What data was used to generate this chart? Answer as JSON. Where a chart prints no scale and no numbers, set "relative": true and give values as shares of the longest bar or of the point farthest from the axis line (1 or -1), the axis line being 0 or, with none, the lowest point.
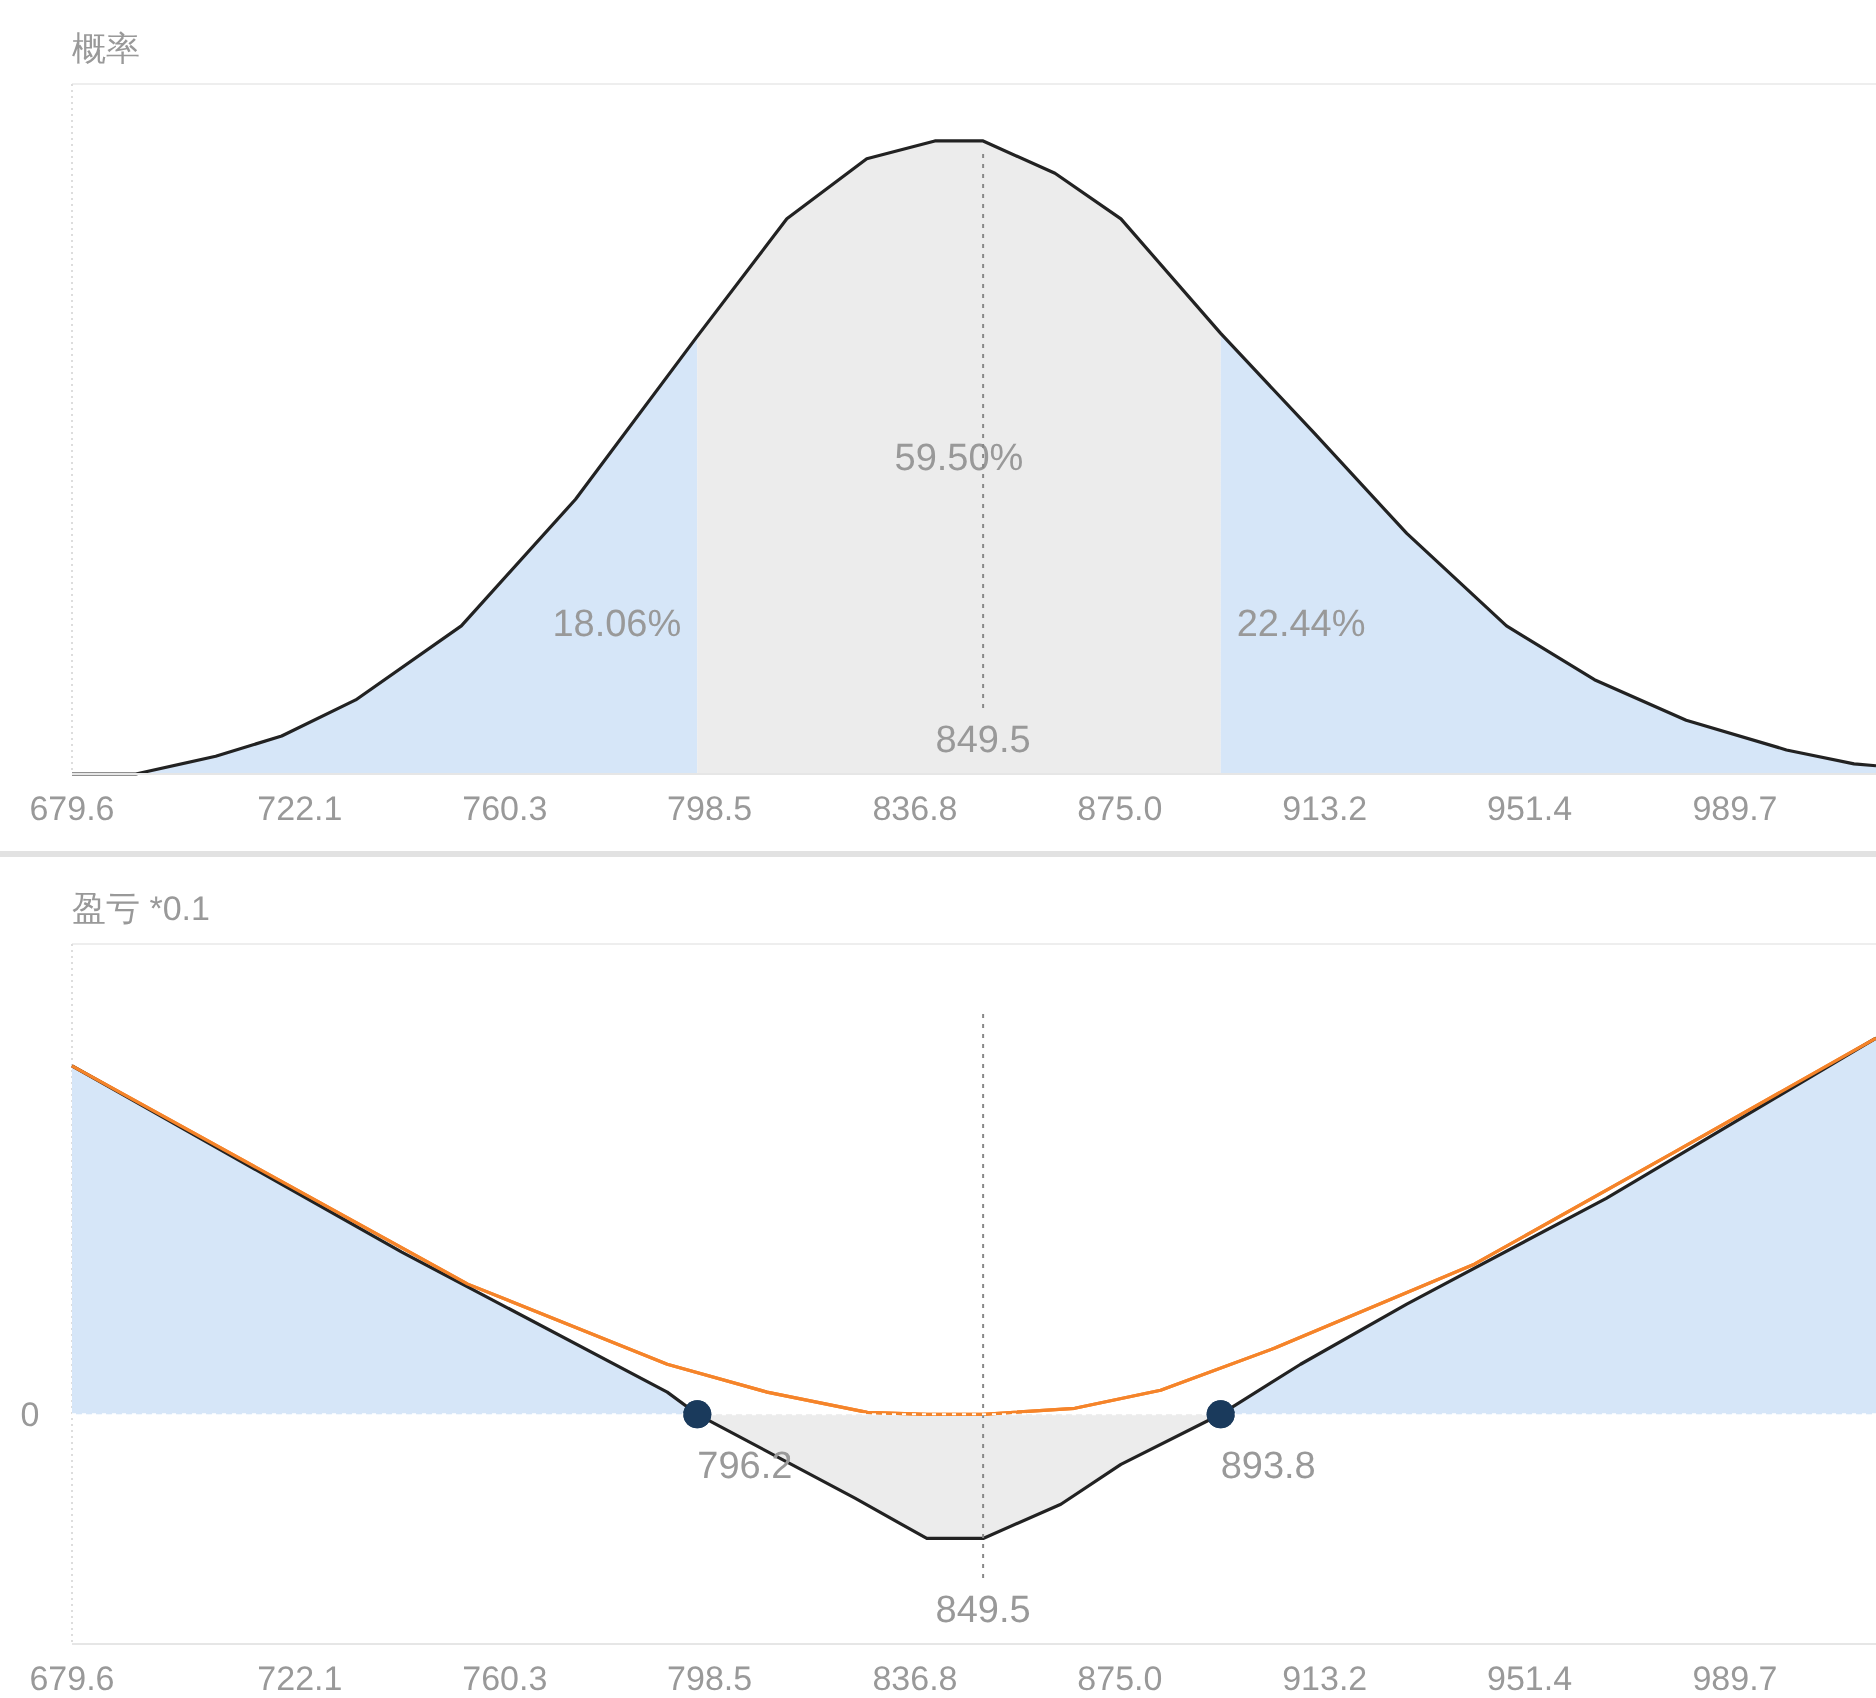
{
  "chart_data": [
    {
      "type": "area",
      "ylabel": "概率",
      "relative": true,
      "xlim": [
        679.6,
        1016
      ],
      "xticks": [
        679.6,
        722.1,
        760.3,
        798.5,
        836.8,
        {
          "value": 875.0,
          "label": "875.0"
        },
        913.2,
        951.4,
        989.7
      ],
      "series": [
        {
          "color": "#222222",
          "x": [
            679.6,
            691.5,
            706.4,
            718.7,
            732.5,
            752.2,
            773.5,
            795.8,
            812.9,
            827.8,
            840.5,
            849.5,
            862.9,
            875.2,
            893.8,
            911.3,
            928.5,
            947.1,
            963.5,
            980.6,
            999.3,
            1011.9,
            1016
          ],
          "values": [
            0,
            0,
            0.028,
            0.06,
            0.117,
            0.234,
            0.434,
            0.687,
            0.877,
            0.972,
            1.0,
            1.0,
            0.949,
            0.877,
            0.696,
            0.538,
            0.38,
            0.234,
            0.149,
            0.085,
            0.038,
            0.016,
            0.013
          ]
        }
      ],
      "bands": [
        {
          "axis": "x",
          "from": 679.6,
          "to": 796.2,
          "label": "18.06%",
          "color": "#d6e6f8"
        },
        {
          "axis": "x",
          "from": 796.2,
          "to": 893.8,
          "label": "59.50%",
          "color": "#ececec"
        },
        {
          "axis": "x",
          "from": 893.8,
          "to": 1016,
          "label": "22.44%",
          "color": "#d6e6f8"
        }
      ],
      "ref_lines": [
        {
          "axis": "x",
          "value": 849.5,
          "label": "849.5",
          "color": "#888888",
          "line_style": "dotted"
        }
      ]
    },
    {
      "type": "area",
      "ylabel": "盈亏 *0.1",
      "relative": true,
      "xlim": [
        679.6,
        1016
      ],
      "xticks": [
        679.6,
        722.1,
        760.3,
        798.5,
        836.8,
        {
          "value": 875.0,
          "label": "875.0"
        },
        913.2,
        951.4,
        989.7
      ],
      "series": [
        {
          "color": "#222222",
          "x": [
            679.6,
            741.1,
            790.6,
            796.2,
            825.6,
            839.0,
            849.5,
            864.0,
            875.2,
            893.8,
            908.7,
            928.5,
            965.7,
            1016
          ],
          "values": [
            0.926,
            0.431,
            0.059,
            0,
            -0.223,
            -0.33,
            -0.33,
            -0.239,
            -0.133,
            0,
            0.133,
            0.293,
            0.574,
            1.0
          ]
        },
        {
          "type": "line",
          "color": "#f5842a",
          "x": [
            679.6,
            753.4,
            790.6,
            809.2,
            827.9,
            839.0,
            849.5,
            866.6,
            882.6,
            903.9,
            941.1,
            978.4,
            1016
          ],
          "values": [
            0.926,
            0.346,
            0.133,
            0.059,
            0.005,
            0,
            0,
            0.016,
            0.064,
            0.176,
            0.399,
            0.697,
            1.0
          ]
        },
        {
          "type": "scatter",
          "color": "#1a3a5c",
          "x": [
            796.2,
            893.8
          ],
          "values": [
            0,
            0
          ]
        }
      ],
      "bands": [
        {
          "axis": "x",
          "from": 679.6,
          "to": 796.2,
          "color": "#d6e6f8"
        },
        {
          "axis": "x",
          "from": 796.2,
          "to": 893.8,
          "color": "#ececec"
        },
        {
          "axis": "x",
          "from": 893.8,
          "to": 1016,
          "color": "#d6e6f8"
        }
      ],
      "ref_lines": [
        {
          "axis": "x",
          "value": 849.5,
          "label": "849.5",
          "color": "#888888",
          "line_style": "dotted"
        },
        {
          "axis": "y",
          "value": 0,
          "label": "0",
          "color": "#ffffff",
          "line_style": "dotted"
        }
      ],
      "annotations": [
        {
          "text": "796.2",
          "x": 796.2,
          "y": 0
        },
        {
          "text": "893.8",
          "x": 893.8,
          "y": 0
        }
      ]
    }
  ]
}
